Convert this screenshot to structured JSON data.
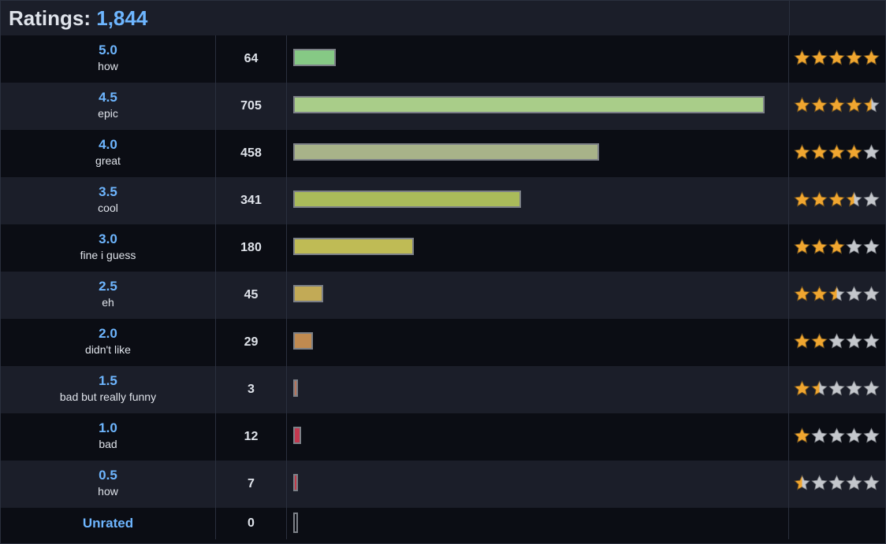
{
  "header": {
    "title_label": "Ratings:",
    "total": "1,844"
  },
  "max_count": 705,
  "colors": {
    "star_fill": "#f0a630",
    "star_empty": "#c4c7cc",
    "star_outline": "#6b4a14"
  },
  "rows": [
    {
      "score": "5.0",
      "label": "how",
      "count": "64",
      "value": 64,
      "stars": 5,
      "color": "#86c985"
    },
    {
      "score": "4.5",
      "label": "epic",
      "count": "705",
      "value": 705,
      "stars": 4.5,
      "color": "#a9cd89"
    },
    {
      "score": "4.0",
      "label": "great",
      "count": "458",
      "value": 458,
      "stars": 4,
      "color": "#a8b389"
    },
    {
      "score": "3.5",
      "label": "cool",
      "count": "341",
      "value": 341,
      "stars": 3.5,
      "color": "#aabb5a"
    },
    {
      "score": "3.0",
      "label": "fine i guess",
      "count": "180",
      "value": 180,
      "stars": 3,
      "color": "#bfbb55"
    },
    {
      "score": "2.5",
      "label": "eh",
      "count": "45",
      "value": 45,
      "stars": 2.5,
      "color": "#c2aa56"
    },
    {
      "score": "2.0",
      "label": "didn't like",
      "count": "29",
      "value": 29,
      "stars": 2,
      "color": "#c08a50"
    },
    {
      "score": "1.5",
      "label": "bad but really funny",
      "count": "3",
      "value": 3,
      "stars": 1.5,
      "color": "#b8745a"
    },
    {
      "score": "1.0",
      "label": "bad",
      "count": "12",
      "value": 12,
      "stars": 1,
      "color": "#c2384f"
    },
    {
      "score": "0.5",
      "label": "how",
      "count": "7",
      "value": 7,
      "stars": 0.5,
      "color": "#c23848"
    },
    {
      "score": "Unrated",
      "label": "",
      "count": "0",
      "value": 0,
      "stars": null,
      "color": "#0b0d14"
    }
  ]
}
